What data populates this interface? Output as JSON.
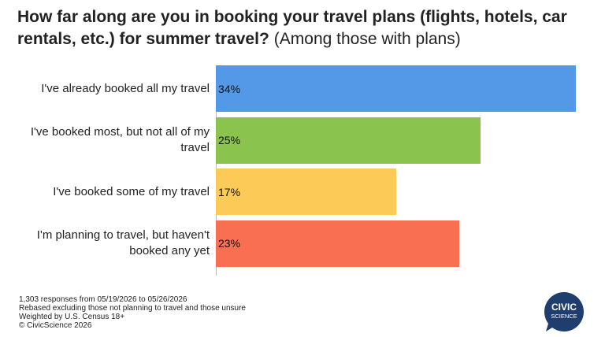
{
  "chart_data": {
    "type": "bar",
    "title": "How far along are you in booking your travel plans (flights, hotels, car rentals, etc.) for summer travel?",
    "subtitle": "(Among those with plans)",
    "categories": [
      "I've already booked all my travel",
      "I've booked most, but not all of my travel",
      "I've booked some of my travel",
      "I'm planning to travel, but haven't booked any yet"
    ],
    "values": [
      34,
      25,
      17,
      23
    ],
    "value_labels": [
      "34%",
      "25%",
      "17%",
      "23%"
    ],
    "colors": [
      "#5499e8",
      "#8bc34f",
      "#fccb57",
      "#f86f52"
    ]
  },
  "notes": [
    "1,303 responses from 05/19/2026 to 05/26/2026",
    "Rebased excluding those not planning to travel and those unsure",
    "Weighted by U.S. Census 18+",
    "© CivicScience 2026"
  ],
  "logo": [
    "CIVIC",
    "SCIENCE"
  ]
}
